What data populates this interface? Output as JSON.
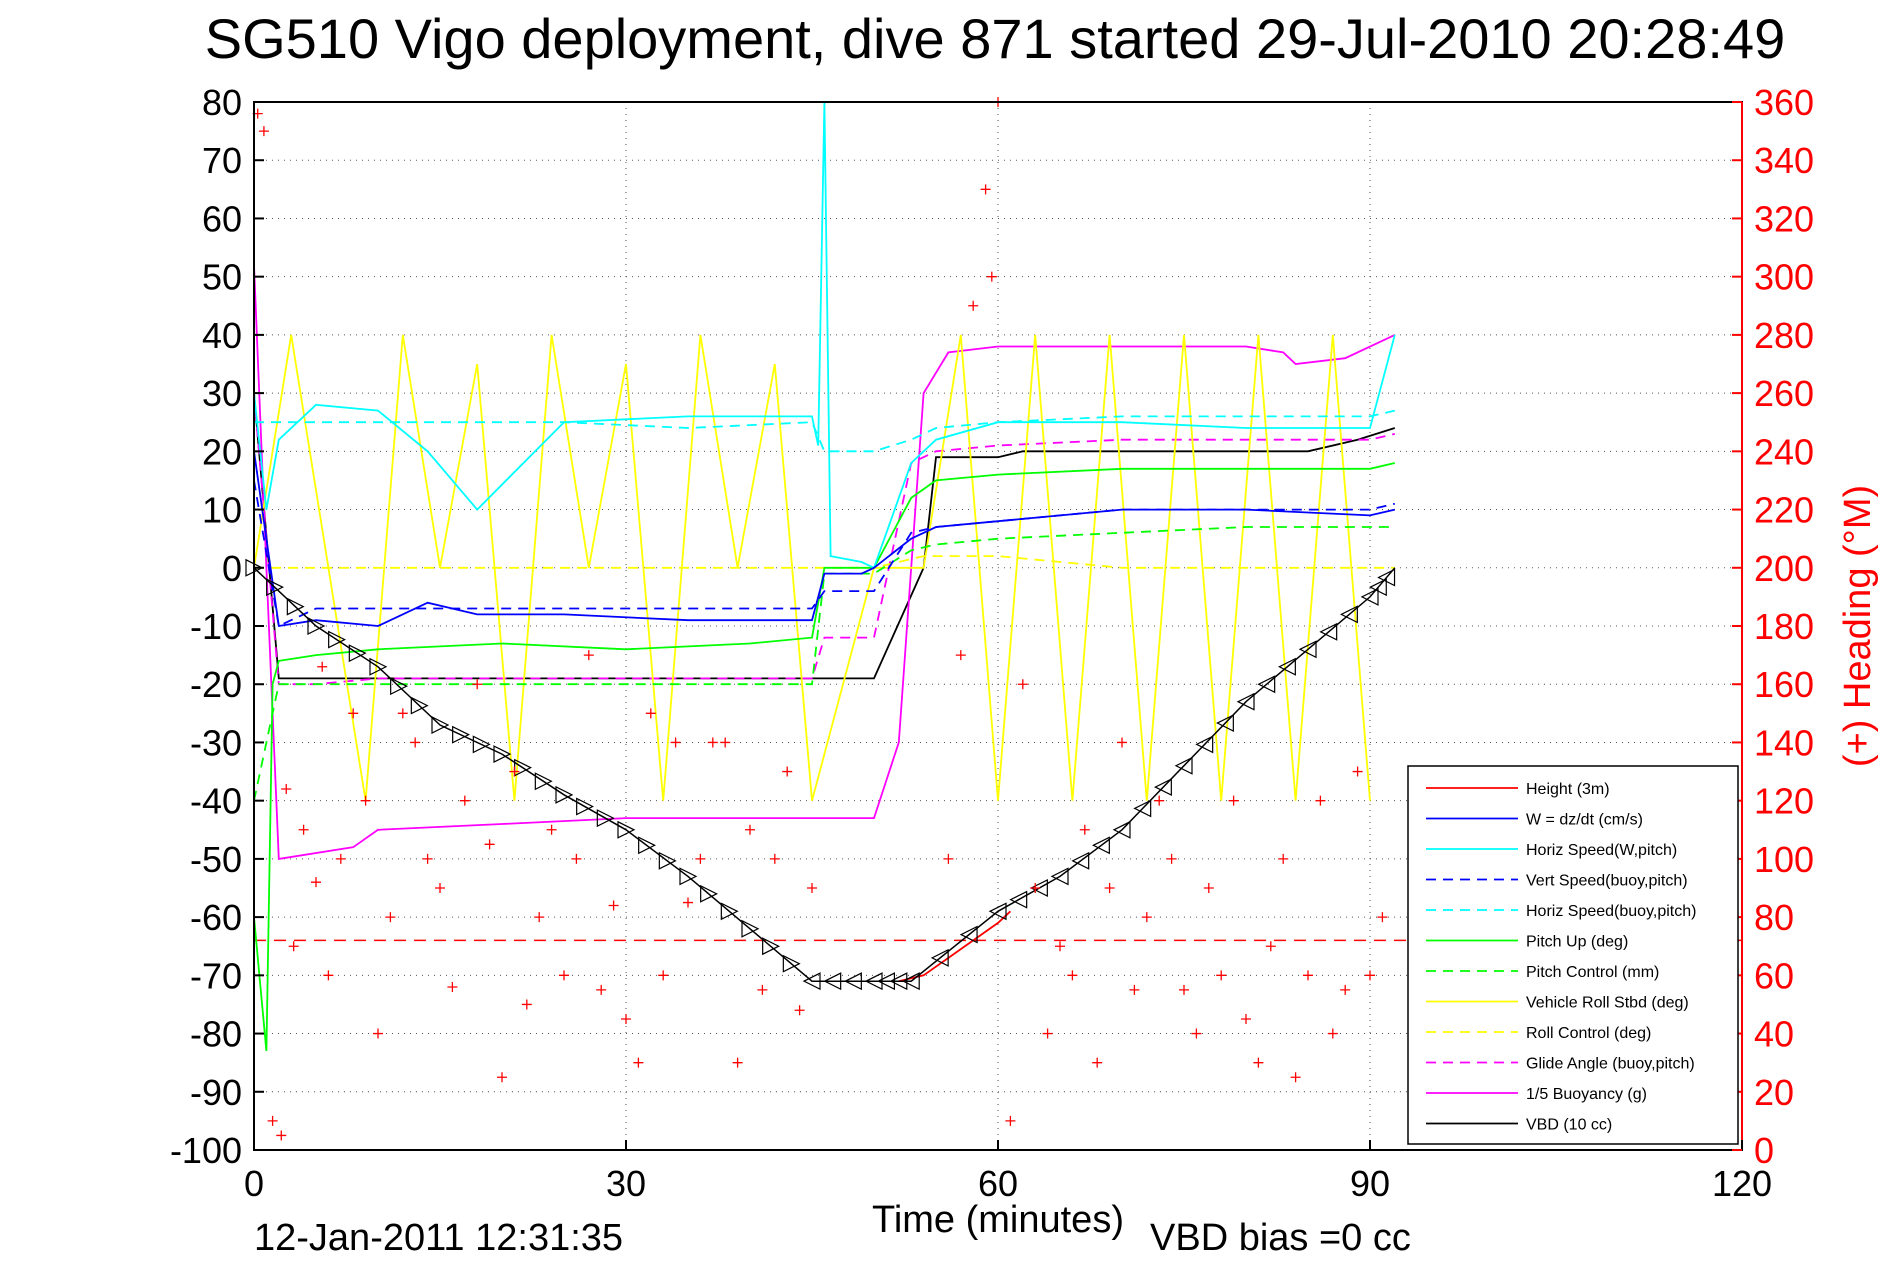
{
  "chart_data": {
    "type": "line",
    "title": "SG510 Vigo deployment, dive 871 started 29-Jul-2010 20:28:49",
    "xlabel": "Time (minutes)",
    "ylabel_right": "(+) Heading (°M)",
    "footer_left": "12-Jan-2011 12:31:35",
    "footer_right": "VBD bias =0 cc",
    "xlim": [
      0,
      120
    ],
    "ylim": [
      -100,
      80
    ],
    "ylim_right": [
      0,
      360
    ],
    "x_ticks": [
      "0",
      "30",
      "60",
      "90",
      "120"
    ],
    "y_ticks": [
      "80",
      "70",
      "60",
      "50",
      "40",
      "30",
      "20",
      "10",
      "0",
      "-10",
      "-20",
      "-30",
      "-40",
      "-50",
      "-60",
      "-70",
      "-80",
      "-90",
      "-100"
    ],
    "y_ticks_right": [
      "360",
      "340",
      "320",
      "300",
      "280",
      "260",
      "240",
      "220",
      "200",
      "180",
      "160",
      "140",
      "120",
      "100",
      "80",
      "60",
      "40",
      "20",
      "0"
    ],
    "grid": true,
    "legend_position": "lower-right",
    "colors": {
      "red": "#ff0000",
      "blue": "#0000ff",
      "cyan": "#00ffff",
      "green": "#00ff00",
      "yellow": "#ffff00",
      "magenta": "#ff00ff",
      "black": "#000000"
    },
    "series": [
      {
        "name": "Height (3m)",
        "color": "#ff0000",
        "dash": false,
        "x": [
          52,
          54,
          56,
          58,
          60,
          61
        ],
        "y": [
          -71,
          -70,
          -67,
          -64,
          -61,
          -59
        ]
      },
      {
        "name": "W = dz/dt (cm/s)",
        "color": "#0000ff",
        "dash": false,
        "x": [
          0,
          1,
          2,
          5,
          10,
          14,
          18,
          25,
          35,
          45,
          46,
          49,
          50,
          53,
          55,
          60,
          70,
          80,
          90,
          92
        ],
        "y": [
          20,
          5,
          -10,
          -9,
          -10,
          -6,
          -8,
          -8,
          -9,
          -9,
          -1,
          -1,
          0,
          5,
          7,
          8,
          10,
          10,
          9,
          10
        ]
      },
      {
        "name": "Horiz Speed(W,pitch)",
        "color": "#00ffff",
        "dash": false,
        "x": [
          0,
          1,
          2,
          5,
          10,
          14,
          18,
          25,
          35,
          45,
          45.5,
          46,
          46.5,
          49,
          50,
          53,
          55,
          60,
          70,
          80,
          90,
          92
        ],
        "y": [
          30,
          10,
          22,
          28,
          27,
          20,
          10,
          25,
          26,
          26,
          21,
          80,
          2,
          1,
          0,
          18,
          22,
          25,
          25,
          24,
          24,
          40
        ]
      },
      {
        "name": "Vert Speed(buoy,pitch)",
        "color": "#0000ff",
        "dash": true,
        "x": [
          0,
          2,
          5,
          15,
          25,
          35,
          45,
          46,
          50,
          53,
          55,
          60,
          70,
          80,
          90,
          92
        ],
        "y": [
          15,
          -10,
          -7,
          -7,
          -7,
          -7,
          -7,
          -4,
          -4,
          6,
          7,
          8,
          10,
          10,
          10,
          11
        ]
      },
      {
        "name": "Horiz Speed(buoy,pitch)",
        "color": "#00ffff",
        "dash": true,
        "x": [
          0,
          2,
          5,
          15,
          25,
          35,
          45,
          46,
          50,
          53,
          55,
          60,
          70,
          80,
          90,
          92
        ],
        "y": [
          25,
          25,
          25,
          25,
          25,
          24,
          25,
          20,
          20,
          22,
          24,
          25,
          26,
          26,
          26,
          27
        ]
      },
      {
        "name": "Pitch Up (deg)",
        "color": "#00ff00",
        "dash": false,
        "x": [
          0,
          1,
          1.5,
          2,
          5,
          10,
          20,
          30,
          40,
          45,
          46,
          50,
          53,
          55,
          60,
          70,
          80,
          90,
          92
        ],
        "y": [
          -60,
          -83,
          -20,
          -16,
          -15,
          -14,
          -13,
          -14,
          -13,
          -12,
          0,
          0,
          12,
          15,
          16,
          17,
          17,
          17,
          18
        ]
      },
      {
        "name": "Pitch Control (mm)",
        "color": "#00ff00",
        "dash": true,
        "x": [
          0,
          2,
          5,
          45,
          46,
          50,
          53,
          55,
          60,
          70,
          80,
          92
        ],
        "y": [
          -40,
          -20,
          -20,
          -20,
          -1,
          -1,
          3,
          4,
          5,
          6,
          7,
          7
        ]
      },
      {
        "name": "Vehicle Roll Stbd (deg)",
        "color": "#ffff00",
        "dash": false,
        "x": [
          0,
          3,
          6,
          9,
          12,
          15,
          18,
          21,
          24,
          27,
          30,
          33,
          36,
          39,
          42,
          45,
          50,
          54,
          57,
          60,
          63,
          66,
          69,
          72,
          75,
          78,
          81,
          84,
          87,
          90
        ],
        "y": [
          0,
          40,
          0,
          -40,
          40,
          0,
          35,
          -40,
          40,
          0,
          35,
          -40,
          40,
          0,
          35,
          -40,
          0,
          0,
          40,
          -40,
          40,
          -40,
          40,
          -40,
          40,
          -40,
          40,
          -40,
          40,
          -40
        ]
      },
      {
        "name": "Roll Control (deg)",
        "color": "#ffff00",
        "dash": true,
        "x": [
          0,
          5,
          10,
          20,
          30,
          40,
          45,
          50,
          54,
          60,
          70,
          80,
          90,
          92
        ],
        "y": [
          0,
          0,
          0,
          0,
          0,
          0,
          0,
          0,
          2,
          2,
          0,
          0,
          0,
          0
        ]
      },
      {
        "name": "Glide Angle (buoy,pitch)",
        "color": "#ff00ff",
        "dash": true,
        "x": [
          0,
          2,
          5,
          10,
          20,
          30,
          40,
          45,
          46,
          50,
          53,
          55,
          60,
          70,
          80,
          90,
          92
        ],
        "y": [
          30,
          -20,
          -20,
          -19,
          -19,
          -19,
          -19,
          -19,
          -12,
          -12,
          18,
          20,
          21,
          22,
          22,
          22,
          23
        ]
      },
      {
        "name": "1/5 Buoyancy (g)",
        "color": "#ff00ff",
        "dash": false,
        "x": [
          0,
          1,
          2,
          8,
          10,
          20,
          30,
          40,
          50,
          52,
          54,
          56,
          60,
          70,
          80,
          83,
          84,
          88,
          92
        ],
        "y": [
          52,
          0,
          -50,
          -48,
          -45,
          -44,
          -43,
          -43,
          -43,
          -30,
          30,
          37,
          38,
          38,
          38,
          37,
          35,
          36,
          40
        ]
      },
      {
        "name": "VBD (10 cc)",
        "color": "#000000",
        "dash": false,
        "x": [
          0,
          2,
          44,
          48,
          50,
          54,
          55,
          60,
          62,
          85,
          89,
          92
        ],
        "y": [
          30,
          -19,
          -19,
          -19,
          -19,
          0,
          19,
          19,
          20,
          20,
          22,
          24
        ]
      }
    ],
    "depth_track": {
      "x": [
        0,
        5,
        10,
        15,
        20,
        25,
        30,
        35,
        40,
        45,
        50,
        53,
        60,
        65,
        70,
        75,
        80,
        85,
        90,
        92
      ],
      "y": [
        0,
        -10,
        -17,
        -27,
        -32,
        -39,
        -45,
        -53,
        -62,
        -71,
        -71,
        -71,
        -59,
        -53,
        -45,
        -34,
        -23,
        -14,
        -5,
        0
      ]
    },
    "reference_line": {
      "y": -64,
      "color": "#ff0000",
      "dash": true
    },
    "heading_points_note": "",
    "heading": {
      "x": [
        0.3,
        0.8,
        1.5,
        2.2,
        2.6,
        3.2,
        4,
        5,
        5.5,
        6,
        7,
        8,
        9,
        10,
        11,
        12,
        13,
        14,
        15,
        16,
        17,
        18,
        19,
        20,
        21,
        22,
        23,
        24,
        25,
        26,
        27,
        28,
        29,
        30,
        31,
        32,
        33,
        34,
        35,
        36,
        37,
        38,
        39,
        40,
        41,
        42,
        43,
        44,
        45,
        56,
        57,
        58,
        59,
        59.5,
        60,
        61,
        62,
        63,
        64,
        65,
        66,
        67,
        68,
        69,
        70,
        71,
        72,
        73,
        74,
        75,
        76,
        77,
        78,
        79,
        80,
        81,
        82,
        83,
        84,
        85,
        86,
        87,
        88,
        89,
        90,
        91
      ],
      "y": [
        356,
        350,
        10,
        5,
        124,
        70,
        110,
        92,
        166,
        60,
        100,
        150,
        120,
        40,
        80,
        150,
        140,
        100,
        90,
        56,
        120,
        160,
        105,
        25,
        130,
        50,
        80,
        110,
        60,
        100,
        170,
        55,
        84,
        45,
        30,
        150,
        60,
        140,
        85,
        100,
        140,
        140,
        30,
        110,
        55,
        100,
        130,
        48,
        90,
        100,
        170,
        290,
        330,
        300,
        360,
        10,
        160,
        90,
        40,
        70,
        60,
        110,
        30,
        90,
        140,
        55,
        80,
        120,
        100,
        55,
        40,
        90,
        60,
        120,
        45,
        30,
        70,
        100,
        25,
        60,
        120,
        40,
        55,
        130,
        60,
        80
      ]
    }
  },
  "legend_items": [
    {
      "label": "Height (3m)"
    },
    {
      "label": "W = dz/dt (cm/s)"
    },
    {
      "label": "Horiz Speed(W,pitch)"
    },
    {
      "label": "Vert Speed(buoy,pitch)"
    },
    {
      "label": "Horiz Speed(buoy,pitch)"
    },
    {
      "label": "Pitch Up (deg)"
    },
    {
      "label": "Pitch Control (mm)"
    },
    {
      "label": "Vehicle Roll Stbd (deg)"
    },
    {
      "label": "Roll Control (deg)"
    },
    {
      "label": "Glide Angle (buoy,pitch)"
    },
    {
      "label": "1/5 Buoyancy (g)"
    },
    {
      "label": "VBD (10 cc)"
    }
  ]
}
